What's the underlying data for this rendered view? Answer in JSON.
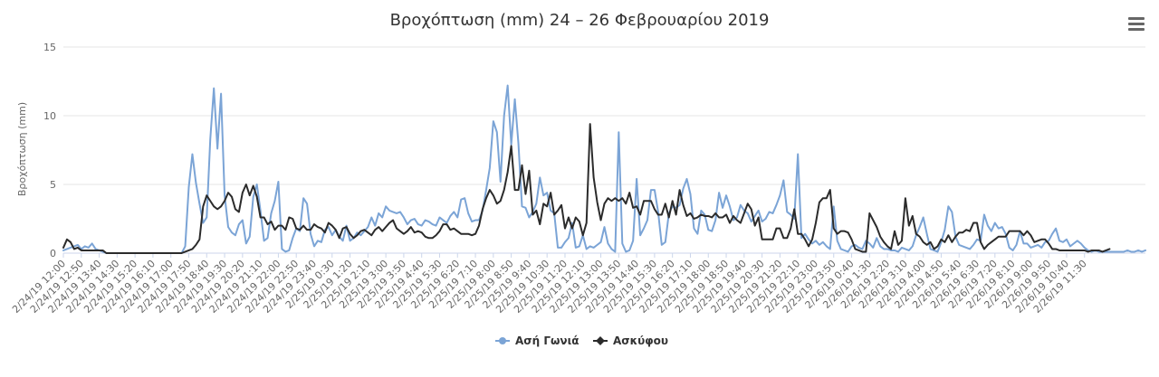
{
  "chart_data": {
    "type": "line",
    "title": "Βροχόπτωση (mm) 24 – 26 Φεβρουαρίου 2019",
    "ylabel": "Βροχόπτωση (mm)",
    "xlabel": "",
    "ylim": [
      0,
      15
    ],
    "yticks": [
      0,
      5,
      10,
      15
    ],
    "grid": true,
    "legend_position": "bottom-center",
    "x_tick_labels": [
      "2/24/19 12:00",
      "2/24/19 12:50",
      "2/24/19 13:40",
      "2/24/19 14:30",
      "2/24/19 15:20",
      "2/24/19 16:10",
      "2/24/19 17:00",
      "2/24/19 17:50",
      "2/24/19 18:40",
      "2/24/19 19:30",
      "2/24/19 20:20",
      "2/24/19 21:10",
      "2/24/19 22:00",
      "2/24/19 22:50",
      "2/24/19 23:40",
      "2/25/19 0:30",
      "2/25/19 1:20",
      "2/25/19 2:10",
      "2/25/19 3:00",
      "2/25/19 3:50",
      "2/25/19 4:40",
      "2/25/19 5:30",
      "2/25/19 6:20",
      "2/25/19 7:10",
      "2/25/19 8:00",
      "2/25/19 8:50",
      "2/25/19 9:40",
      "2/25/19 10:30",
      "2/25/19 11:20",
      "2/25/19 12:10",
      "2/25/19 13:00",
      "2/25/19 13:50",
      "2/25/19 14:40",
      "2/25/19 15:30",
      "2/25/19 16:20",
      "2/25/19 17:10",
      "2/25/19 18:00",
      "2/25/19 18:50",
      "2/25/19 19:40",
      "2/25/19 20:30",
      "2/25/19 21:20",
      "2/25/19 22:10",
      "2/25/19 23:00",
      "2/25/19 23:50",
      "2/26/19 0:40",
      "2/26/19 1:30",
      "2/26/19 2:20",
      "2/26/19 3:10",
      "2/26/19 4:00",
      "2/26/19 4:50",
      "2/26/19 5:40",
      "2/26/19 6:30",
      "2/26/19 7:20",
      "2/26/19 8:10",
      "2/26/19 9:00",
      "2/26/19 9:50",
      "2/26/19 10:40",
      "2/26/19 11:30"
    ],
    "points_per_tick": 5,
    "series": [
      {
        "name": "Ασή Γωνιά",
        "color": "#7ba4d6",
        "marker": "circle",
        "values": [
          0.2,
          0.3,
          0.4,
          0.5,
          0.6,
          0.3,
          0.5,
          0.4,
          0.7,
          0.3,
          0.2,
          0.1,
          0,
          0,
          0,
          0,
          0,
          0,
          0,
          0,
          0,
          0,
          0,
          0,
          0,
          0,
          0,
          0,
          0,
          0,
          0,
          0,
          0,
          0,
          0.5,
          4.8,
          7.2,
          5.1,
          3.6,
          2.2,
          2.6,
          8.3,
          12.0,
          7.6,
          11.6,
          4.2,
          1.9,
          1.5,
          1.3,
          2.1,
          2.4,
          0.7,
          1.2,
          4.1,
          5.0,
          3.1,
          0.9,
          1.1,
          2.9,
          3.8,
          5.2,
          0.3,
          0.1,
          0.2,
          1.1,
          1.8,
          1.6,
          4.0,
          3.6,
          1.4,
          0.5,
          0.9,
          0.8,
          1.7,
          1.9,
          1.3,
          1.7,
          1.2,
          0.9,
          2.0,
          0.9,
          1.1,
          1.5,
          1.3,
          1.6,
          1.9,
          2.6,
          2.0,
          2.9,
          2.6,
          3.4,
          3.1,
          3.0,
          2.9,
          3.0,
          2.6,
          2.1,
          2.4,
          2.5,
          2.1,
          2.0,
          2.4,
          2.3,
          2.1,
          2.0,
          2.6,
          2.4,
          2.2,
          2.7,
          3.0,
          2.6,
          3.9,
          4.0,
          2.9,
          2.3,
          2.4,
          2.4,
          3.1,
          4.6,
          6.2,
          9.6,
          8.8,
          5.2,
          10.0,
          12.2,
          7.9,
          11.2,
          8.0,
          3.4,
          3.3,
          2.6,
          3.0,
          3.6,
          5.5,
          4.2,
          4.4,
          3.1,
          2.9,
          0.4,
          0.4,
          0.8,
          1.1,
          2.2,
          0.4,
          0.5,
          1.3,
          0.3,
          0.5,
          0.4,
          0.6,
          0.8,
          1.9,
          0.7,
          0.3,
          0.1,
          8.8,
          0.7,
          0.1,
          0.2,
          0.9,
          5.4,
          1.3,
          1.8,
          2.4,
          4.6,
          4.6,
          3.0,
          0.6,
          0.8,
          2.9,
          3.4,
          3.3,
          3.5,
          4.7,
          5.4,
          4.3,
          1.8,
          1.4,
          3.1,
          2.8,
          1.7,
          1.6,
          2.4,
          4.4,
          3.3,
          4.2,
          3.4,
          2.4,
          2.6,
          3.5,
          3.1,
          2.9,
          2.3,
          2.7,
          3.1,
          2.3,
          2.5,
          3.0,
          2.9,
          3.5,
          4.2,
          5.3,
          3.0,
          2.8,
          2.5,
          7.2,
          1.1,
          1.4,
          1.0,
          0.7,
          0.9,
          0.6,
          0.8,
          0.5,
          0.3,
          3.4,
          0.9,
          0.3,
          0.2,
          0.1,
          0.5,
          0.6,
          0.4,
          0.3,
          0.9,
          0.7,
          0.4,
          1.1,
          0.5,
          0.3,
          0.3,
          0.2,
          0.2,
          0.1,
          0.4,
          0.3,
          0.2,
          0.5,
          1.3,
          1.9,
          2.6,
          1.4,
          0.3,
          0.2,
          0.1,
          0.8,
          1.7,
          3.4,
          3.0,
          1.2,
          0.6,
          0.5,
          0.4,
          0.3,
          0.6,
          1.0,
          0.9,
          2.8,
          2.0,
          1.6,
          2.2,
          1.8,
          1.9,
          1.4,
          0.4,
          0.2,
          0.6,
          1.6,
          0.7,
          0.7,
          0.4,
          0.5,
          0.6,
          0.4,
          0.8,
          0.9,
          1.4,
          1.8,
          0.9,
          0.8,
          1.0,
          0.5,
          0.7,
          0.9,
          0.7,
          0.4,
          0.2,
          0.1,
          0.2,
          0.1,
          0.1,
          0.1,
          0.1,
          0.1,
          0.1,
          0.1,
          0.1,
          0.2,
          0.1,
          0.1,
          0.2,
          0.1,
          0.2
        ]
      },
      {
        "name": "Ασκύφου",
        "color": "#2b2b2b",
        "marker": "diamond",
        "values": [
          0.4,
          1.0,
          0.8,
          0.3,
          0.4,
          0.2,
          0.2,
          0.2,
          0.2,
          0.2,
          0.2,
          0.2,
          0,
          0,
          0,
          0,
          0,
          0,
          0,
          0,
          0,
          0,
          0,
          0,
          0,
          0,
          0,
          0,
          0,
          0,
          0,
          0,
          0,
          0,
          0.1,
          0.2,
          0.3,
          0.6,
          1.0,
          3.4,
          4.2,
          3.8,
          3.4,
          3.2,
          3.4,
          3.8,
          4.4,
          4.1,
          3.2,
          3.0,
          4.4,
          5.0,
          4.2,
          4.9,
          4.1,
          2.6,
          2.6,
          2.1,
          2.3,
          1.7,
          2.0,
          2.0,
          1.7,
          2.6,
          2.5,
          1.8,
          1.7,
          2.0,
          1.7,
          1.7,
          2.1,
          1.9,
          1.8,
          1.5,
          2.2,
          2.0,
          1.7,
          1.1,
          1.8,
          1.9,
          1.4,
          1.1,
          1.3,
          1.6,
          1.7,
          1.5,
          1.3,
          1.7,
          1.9,
          1.6,
          1.9,
          2.2,
          2.4,
          1.8,
          1.6,
          1.4,
          1.6,
          1.9,
          1.5,
          1.6,
          1.5,
          1.2,
          1.1,
          1.1,
          1.3,
          1.6,
          2.1,
          2.1,
          1.7,
          1.8,
          1.6,
          1.4,
          1.4,
          1.4,
          1.3,
          1.4,
          2.0,
          3.2,
          4.0,
          4.6,
          4.2,
          3.6,
          3.8,
          4.6,
          5.9,
          7.8,
          4.6,
          4.6,
          6.4,
          4.3,
          6.0,
          2.8,
          3.1,
          2.1,
          3.6,
          3.4,
          4.4,
          2.8,
          3.1,
          3.5,
          1.8,
          2.6,
          1.8,
          2.6,
          2.3,
          1.3,
          2.2,
          9.4,
          5.5,
          3.7,
          2.4,
          3.6,
          4.0,
          3.8,
          4.0,
          3.8,
          4.0,
          3.6,
          4.4,
          3.3,
          3.4,
          2.8,
          3.8,
          3.8,
          3.8,
          3.2,
          2.8,
          2.8,
          3.6,
          2.6,
          3.8,
          2.8,
          4.6,
          3.5,
          2.7,
          2.9,
          2.5,
          2.6,
          2.8,
          2.7,
          2.7,
          2.6,
          2.9,
          2.6,
          2.6,
          2.8,
          2.2,
          2.7,
          2.4,
          2.2,
          2.9,
          3.6,
          3.2,
          2.0,
          2.6,
          1.0,
          1.0,
          1.0,
          1.0,
          1.8,
          1.8,
          1.1,
          1.1,
          1.8,
          3.2,
          1.4,
          1.4,
          1.0,
          0.5,
          1.0,
          2.2,
          3.7,
          4.0,
          4.0,
          4.6,
          1.8,
          1.4,
          1.6,
          1.6,
          1.5,
          1.0,
          0.3,
          0.2,
          0.1,
          0.1,
          2.9,
          2.4,
          1.9,
          1.2,
          0.8,
          0.5,
          0.3,
          1.6,
          0.6,
          0.9,
          4.0,
          2.0,
          2.7,
          1.4,
          1.2,
          0.8,
          0.6,
          0.8,
          0.3,
          0.5,
          1.0,
          0.8,
          1.3,
          0.8,
          1.2,
          1.5,
          1.5,
          1.7,
          1.6,
          2.2,
          2.2,
          0.8,
          0.3,
          0.6,
          0.8,
          1.0,
          1.2,
          1.2,
          1.2,
          1.6,
          1.6,
          1.6,
          1.6,
          1.3,
          1.6,
          1.3,
          0.8,
          0.9,
          1.0,
          1.0,
          0.7,
          0.3,
          0.3,
          0.2,
          0.2,
          0.2,
          0.2,
          0.2,
          0.2,
          0.2,
          0.2,
          0.1,
          0.2,
          0.2,
          0.2,
          0.1,
          0.2,
          0.3
        ]
      }
    ]
  },
  "ui": {
    "menu_icon": "hamburger-menu-icon"
  }
}
